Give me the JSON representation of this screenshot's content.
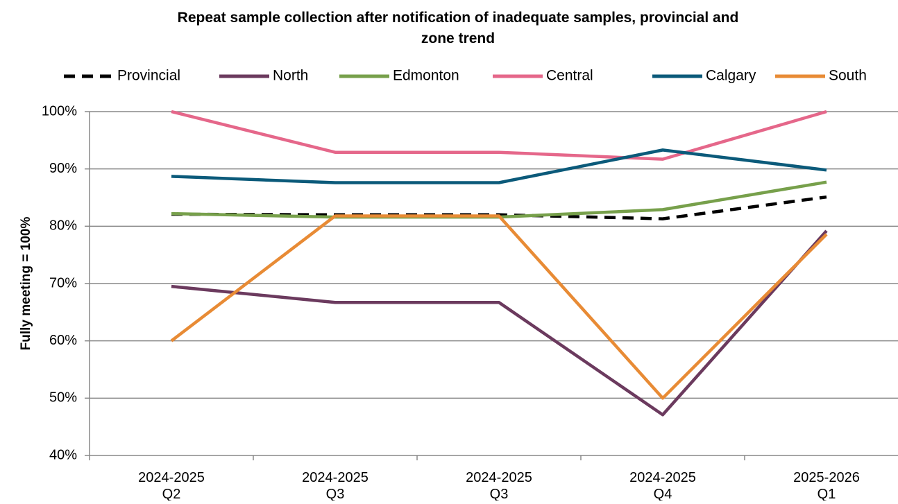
{
  "chart_data": {
    "type": "line",
    "title": [
      "Repeat sample collection after notification of  inadequate samples, provincial and",
      "zone trend"
    ],
    "y_label": "Fully meeting = 100%",
    "categories": [
      "2024-2025\nQ2",
      "2024-2025\nQ3",
      "2024-2025\nQ3",
      "2024-2025\nQ4",
      "2025-2026\nQ1"
    ],
    "series": [
      {
        "name": "Provincial",
        "color": "#000000",
        "dashed": true,
        "values": [
          82.1,
          82.0,
          82.0,
          81.3,
          85.1
        ]
      },
      {
        "name": "North",
        "color": "#6b3a5e",
        "values": [
          69.5,
          66.7,
          66.7,
          47.1,
          79.2
        ]
      },
      {
        "name": "Edmonton",
        "color": "#77a04b",
        "values": [
          82.2,
          81.6,
          81.6,
          82.9,
          87.7
        ]
      },
      {
        "name": "Central",
        "color": "#e5678a",
        "values": [
          100,
          92.9,
          92.9,
          91.7,
          100
        ]
      },
      {
        "name": "Calgary",
        "color": "#0b5a7a",
        "values": [
          88.7,
          87.6,
          87.6,
          93.3,
          89.8
        ]
      },
      {
        "name": "South",
        "color": "#e88b35",
        "values": [
          60,
          81.8,
          81.8,
          50,
          78.6
        ]
      }
    ],
    "ylim": [
      40,
      100
    ],
    "yticks": [
      {
        "value": 40,
        "label": "40%"
      },
      {
        "value": 50,
        "label": "50%"
      },
      {
        "value": 60,
        "label": "60%"
      },
      {
        "value": 70,
        "label": "70%"
      },
      {
        "value": 80,
        "label": "80%"
      },
      {
        "value": 90,
        "label": "90%"
      },
      {
        "value": 100,
        "label": "100%"
      }
    ],
    "grid": true,
    "legend": "top"
  }
}
